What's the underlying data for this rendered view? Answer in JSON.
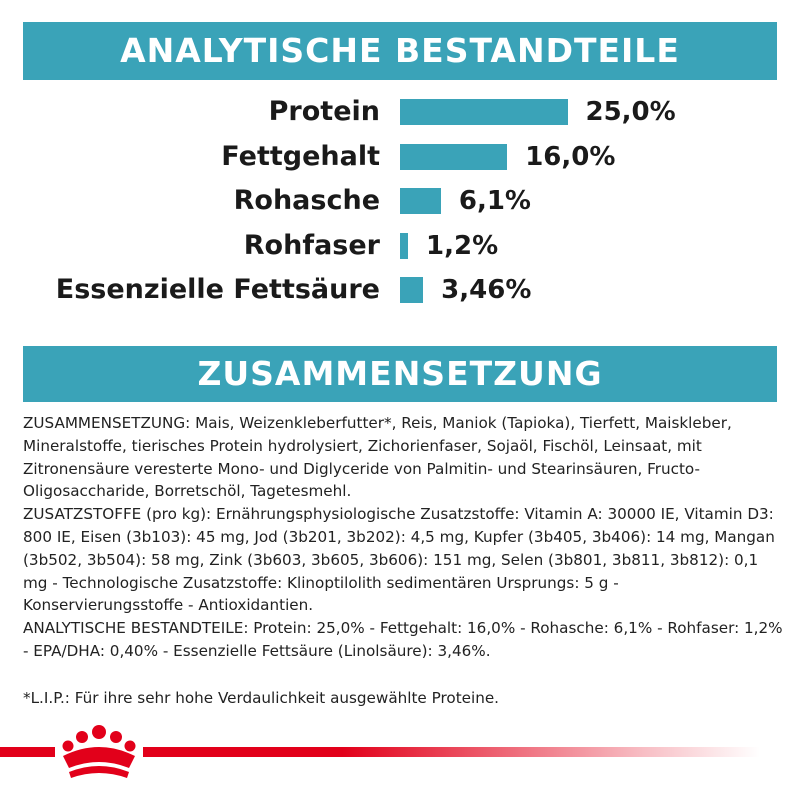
{
  "sections": {
    "analysis_title": "ANALYTISCHE BESTANDTEILE",
    "composition_title": "ZUSAMMENSETZUNG"
  },
  "chart_data": {
    "type": "bar",
    "orientation": "horizontal",
    "title": "ANALYTISCHE BESTANDTEILE",
    "categories": [
      "Protein",
      "Fettgehalt",
      "Rohasche",
      "Rohfaser",
      "Essenzielle Fettsäure"
    ],
    "values": [
      25.0,
      16.0,
      6.1,
      1.2,
      3.46
    ],
    "value_labels": [
      "25,0%",
      "16,0%",
      "6,1%",
      "1,2%",
      "3,46%"
    ],
    "unit": "%",
    "color": "#3aa3b8"
  },
  "composition": {
    "zusammensetzung": "ZUSAMMENSETZUNG: Mais, Weizenkleberfutter*, Reis, Maniok (Tapioka), Tierfett, Maiskleber, Mineralstoffe, tierisches Protein hydrolysiert, Zichorienfaser, Sojaöl, Fischöl, Leinsaat, mit Zitronensäure veresterte Mono- und Diglyceride von Palmitin- und Stearinsäuren, Fructo-Oligosaccharide, Borretschöl, Tagetesmehl.",
    "zusatzstoffe": "ZUSATZSTOFFE (pro kg): Ernährungsphysiologische Zusatzstoffe: Vitamin A: 30000 IE, Vitamin D3: 800 IE, Eisen (3b103): 45 mg, Jod (3b201, 3b202): 4,5 mg, Kupfer (3b405, 3b406): 14 mg, Mangan (3b502, 3b504): 58 mg, Zink (3b603, 3b605, 3b606): 151 mg, Selen (3b801, 3b811, 3b812): 0,1 mg - Technologische Zusatzstoffe: Klinoptilolith sedimentären Ursprungs: 5 g - Konservierungsstoffe - Antioxidantien.",
    "analytische": "ANALYTISCHE BESTANDTEILE: Protein: 25,0% - Fettgehalt: 16,0% - Rohasche: 6,1% - Rohfaser: 1,2% - EPA/DHA: 0,40% - Essenzielle Fettsäure (Linolsäure): 3,46%."
  },
  "footnote": "*L.I.P.: Für ihre sehr hohe Verdaulichkeit ausgewählte Proteine.",
  "colors": {
    "accent": "#3aa3b8",
    "brand_red": "#e2001a",
    "text": "#1a1a1a"
  },
  "logo": {
    "icon": "royal-canin-crown-icon"
  }
}
